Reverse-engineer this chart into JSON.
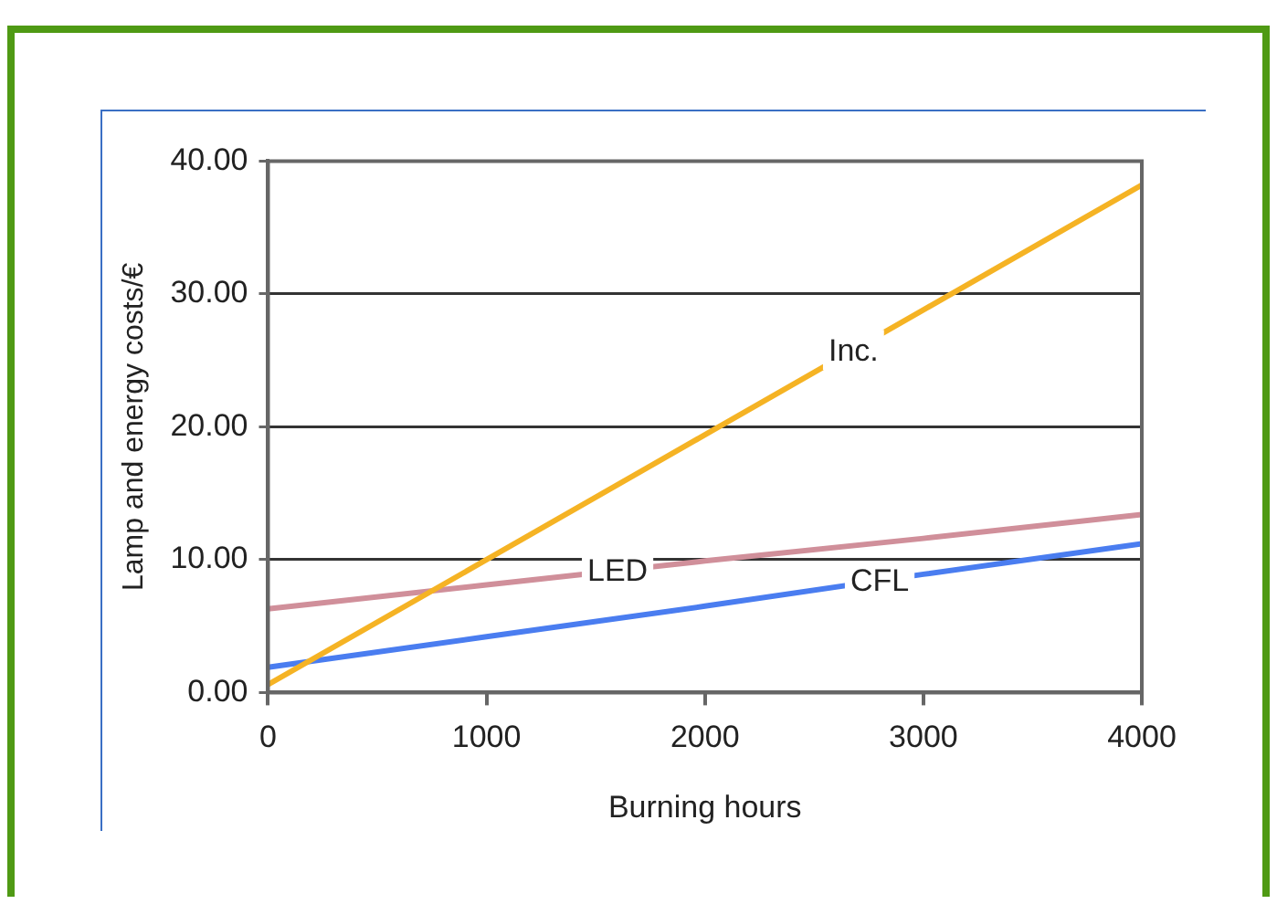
{
  "chart_data": {
    "type": "line",
    "xlabel": "Burning hours",
    "ylabel": "Lamp and energy costs/€",
    "x": [
      0,
      1000,
      2000,
      3000,
      4000
    ],
    "series": [
      {
        "name": "Inc.",
        "color": "#f5b324",
        "values": [
          0.6,
          10,
          19.4,
          28.8,
          38.2
        ]
      },
      {
        "name": "LED",
        "color": "#d08f9a",
        "values": [
          6.3,
          8.1,
          9.9,
          11.6,
          13.4
        ]
      },
      {
        "name": "CFL",
        "color": "#4a7df0",
        "values": [
          1.9,
          4.2,
          6.5,
          8.9,
          11.2
        ]
      }
    ],
    "xlim": [
      0,
      4000
    ],
    "xticks": [
      0,
      1000,
      2000,
      3000,
      4000
    ],
    "ylim": [
      0,
      40
    ],
    "yticks": [
      {
        "value": 0,
        "label": "0.00"
      },
      {
        "value": 10,
        "label": "10.00"
      },
      {
        "value": 20,
        "label": "20.00"
      },
      {
        "value": 30,
        "label": "30.00"
      },
      {
        "value": 40,
        "label": "40.00"
      }
    ],
    "grid": "y",
    "legend": false,
    "marker": "none",
    "line_style": "solid"
  }
}
